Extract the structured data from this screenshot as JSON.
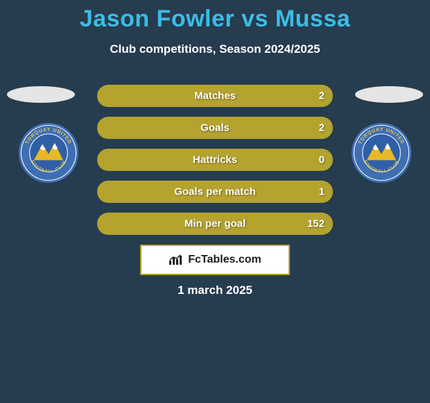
{
  "background_color": "#263c4f",
  "title": {
    "text": "Jason Fowler vs Mussa",
    "color": "#3cbce6",
    "fontsize": 34
  },
  "subtitle": {
    "text": "Club competitions, Season 2024/2025",
    "color": "#ffffff",
    "fontsize": 17
  },
  "date": {
    "text": "1 march 2025",
    "color": "#ffffff",
    "fontsize": 17
  },
  "brand": {
    "text": "FcTables.com"
  },
  "ellipse_color": "#e5e5e5",
  "club_badge": {
    "outer_ring_color": "#3f6fb3",
    "inner_ring_color": "#ffffff",
    "ring_text_color": "#e9c94b",
    "center_bg": "#2f5fa6",
    "mountain_color": "#e7b926",
    "snow_color": "#ffffff",
    "top_text": "TORQUAY UNITED",
    "bottom_text": "FOOTBALL CLUB"
  },
  "rows": [
    {
      "label": "Matches",
      "left": "",
      "right": "2",
      "fill_color": "#b5a32f",
      "border_color": "#b5a32f",
      "fill_pct": 100
    },
    {
      "label": "Goals",
      "left": "",
      "right": "2",
      "fill_color": "#b5a32f",
      "border_color": "#b5a32f",
      "fill_pct": 100
    },
    {
      "label": "Hattricks",
      "left": "",
      "right": "0",
      "fill_color": "#b5a32f",
      "border_color": "#b5a32f",
      "fill_pct": 100
    },
    {
      "label": "Goals per match",
      "left": "",
      "right": "1",
      "fill_color": "#b5a32f",
      "border_color": "#b5a32f",
      "fill_pct": 100
    },
    {
      "label": "Min per goal",
      "left": "",
      "right": "152",
      "fill_color": "#b5a32f",
      "border_color": "#b5a32f",
      "fill_pct": 100
    }
  ]
}
